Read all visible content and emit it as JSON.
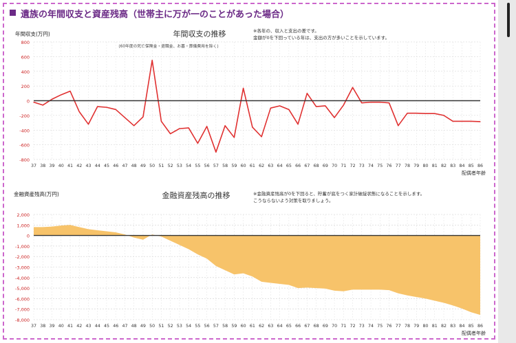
{
  "page_title": "遺族の年間収支と資産残高（世帯主に万が一のことがあった場合）",
  "colors": {
    "title": "#6b2a86",
    "frame": "#cc66cc",
    "line": "#e03030",
    "area": "#f7c36a",
    "zero": "#333333",
    "ytick": "#cc2222"
  },
  "chart_data": [
    {
      "type": "line",
      "title": "年間収支の推移",
      "subtitle": "(60年度の死亡保険金・退職金、お墓・葬儀費用を除く)",
      "note_lines": [
        "※各年の、収入と支出の差です。",
        "金額が0を下回っている年は、支出の方が多いことを示しています。"
      ],
      "ylabel": "年間収支(万円)",
      "xlabel": "配偶者年齢",
      "ylim": [
        -800,
        800
      ],
      "yticks": [
        800,
        600,
        400,
        200,
        0,
        -200,
        -400,
        -600,
        -800
      ],
      "grid": true,
      "x": [
        37,
        38,
        39,
        40,
        41,
        42,
        43,
        44,
        45,
        46,
        47,
        48,
        49,
        50,
        51,
        52,
        53,
        54,
        55,
        56,
        57,
        58,
        59,
        60,
        61,
        62,
        63,
        64,
        65,
        66,
        67,
        68,
        69,
        70,
        71,
        72,
        73,
        74,
        75,
        76,
        77,
        78,
        79,
        80,
        81,
        82,
        83,
        84,
        85,
        86
      ],
      "values": [
        -20,
        -60,
        20,
        80,
        130,
        -150,
        -320,
        -80,
        -90,
        -120,
        -230,
        -340,
        -220,
        550,
        -280,
        -450,
        -380,
        -370,
        -580,
        -350,
        -700,
        -340,
        -500,
        170,
        -360,
        -490,
        -100,
        -70,
        -120,
        -320,
        100,
        -80,
        -70,
        -230,
        -60,
        180,
        -30,
        -20,
        -20,
        -30,
        -340,
        -170,
        -170,
        -175,
        -175,
        -200,
        -280,
        -280,
        -280,
        -285
      ]
    },
    {
      "type": "area",
      "title": "金融資産残高の推移",
      "note_lines": [
        "※金融資産残高が0を下回ると、貯蓄が底をつく家計破綻状態になることを示します。",
        "こうならないよう対策を取りましょう。"
      ],
      "ylabel": "金融資産残高(万円)",
      "xlabel": "配偶者年齢",
      "ylim": [
        -8000,
        2000
      ],
      "yticks": [
        2000,
        1000,
        0,
        -1000,
        -2000,
        -3000,
        -4000,
        -5000,
        -6000,
        -7000,
        -8000
      ],
      "ytick_labels": [
        "2,000",
        "1,000",
        "0",
        "-1,000",
        "-2,000",
        "-3,000",
        "-4,000",
        "-5,000",
        "-6,000",
        "-7,000",
        "-8,000"
      ],
      "grid": true,
      "x": [
        37,
        38,
        39,
        40,
        41,
        42,
        43,
        44,
        45,
        46,
        47,
        48,
        49,
        50,
        51,
        52,
        53,
        54,
        55,
        56,
        57,
        58,
        59,
        60,
        61,
        62,
        63,
        64,
        65,
        66,
        67,
        68,
        69,
        70,
        71,
        72,
        73,
        74,
        75,
        76,
        77,
        78,
        79,
        80,
        81,
        82,
        83,
        84,
        85,
        86
      ],
      "values": [
        800,
        800,
        850,
        950,
        1000,
        800,
        600,
        500,
        400,
        300,
        100,
        -200,
        -400,
        100,
        -100,
        -500,
        -900,
        -1300,
        -1800,
        -2200,
        -2900,
        -3300,
        -3700,
        -3600,
        -3900,
        -4400,
        -4500,
        -4600,
        -4700,
        -5000,
        -4950,
        -5000,
        -5050,
        -5250,
        -5300,
        -5150,
        -5150,
        -5150,
        -5150,
        -5200,
        -5500,
        -5700,
        -5850,
        -6000,
        -6200,
        -6400,
        -6650,
        -6950,
        -7300,
        -7550
      ]
    }
  ]
}
